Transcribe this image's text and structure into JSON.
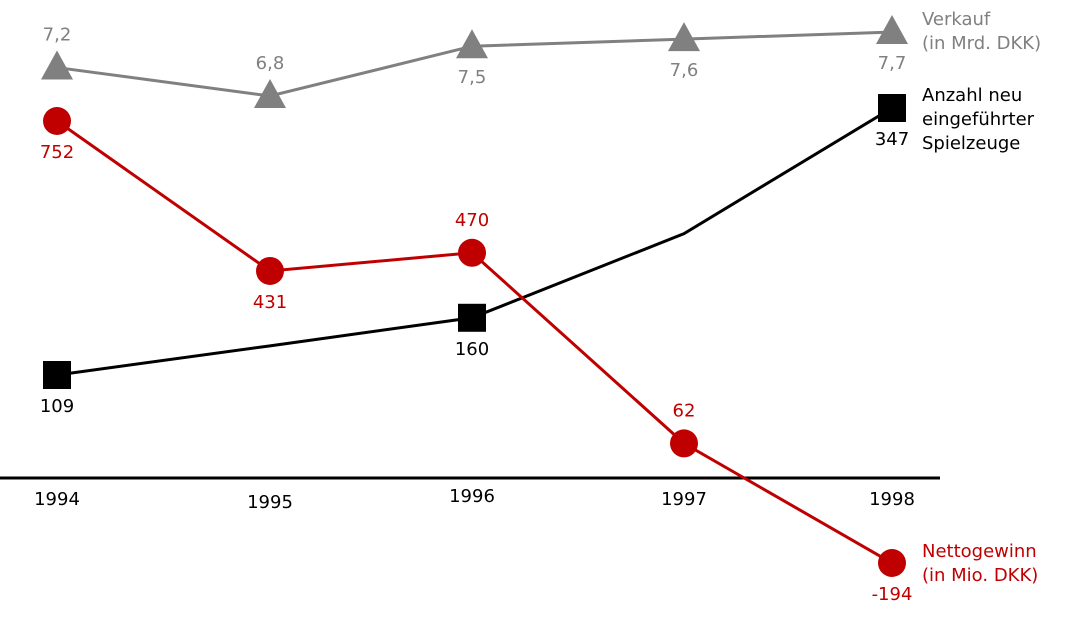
{
  "chart_data": {
    "type": "line",
    "categories": [
      "1994",
      "1995",
      "1996",
      "1997",
      "1998"
    ],
    "series": [
      {
        "name": "Verkauf\n(in Mrd. DKK)",
        "color": "#808080",
        "marker": "triangle",
        "values": [
          7.2,
          6.8,
          7.5,
          7.6,
          7.7
        ],
        "value_labels": [
          "7,2",
          "6,8",
          "7,5",
          "7,6",
          "7,7"
        ]
      },
      {
        "name": "Anzahl neu\neingeführter\nSpielzeuge",
        "color": "#000000",
        "marker": "square",
        "values": [
          109,
          135,
          160,
          235,
          347
        ],
        "value_labels": [
          "109",
          null,
          "160",
          null,
          "347"
        ]
      },
      {
        "name": "Nettogewinn\n(in Mio. DKK)",
        "color": "#c00000",
        "marker": "circle",
        "values": [
          752,
          431,
          470,
          62,
          -194
        ]
      }
    ]
  }
}
